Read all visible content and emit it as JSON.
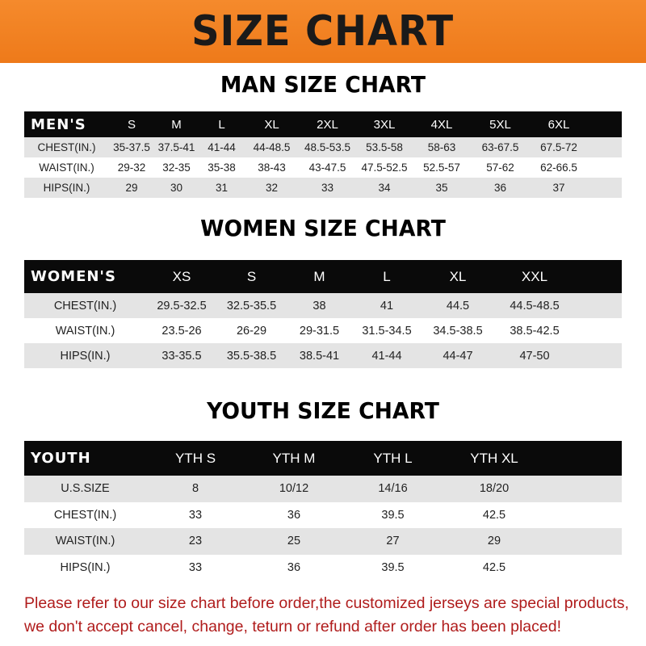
{
  "banner": {
    "title": "SIZE CHART",
    "color": "#f0801f"
  },
  "men": {
    "title": "MAN SIZE CHART",
    "header": [
      "MEN'S",
      "S",
      "M",
      "L",
      "XL",
      "2XL",
      "3XL",
      "4XL",
      "5XL",
      "6XL"
    ],
    "rows": [
      [
        "CHEST(IN.)",
        "35-37.5",
        "37.5-41",
        "41-44",
        "44-48.5",
        "48.5-53.5",
        "53.5-58",
        "58-63",
        "63-67.5",
        "67.5-72"
      ],
      [
        "WAIST(IN.)",
        "29-32",
        "32-35",
        "35-38",
        "38-43",
        "43-47.5",
        "47.5-52.5",
        "52.5-57",
        "57-62",
        "62-66.5"
      ],
      [
        "HIPS(IN.)",
        "29",
        "30",
        "31",
        "32",
        "33",
        "34",
        "35",
        "36",
        "37"
      ]
    ]
  },
  "women": {
    "title": "WOMEN SIZE CHART",
    "header": [
      "WOMEN'S",
      "XS",
      "S",
      "M",
      "L",
      "XL",
      "XXL"
    ],
    "rows": [
      [
        "CHEST(IN.)",
        "29.5-32.5",
        "32.5-35.5",
        "38",
        "41",
        "44.5",
        "44.5-48.5"
      ],
      [
        "WAIST(IN.)",
        "23.5-26",
        "26-29",
        "29-31.5",
        "31.5-34.5",
        "34.5-38.5",
        "38.5-42.5"
      ],
      [
        "HIPS(IN.)",
        "33-35.5",
        "35.5-38.5",
        "38.5-41",
        "41-44",
        "44-47",
        "47-50"
      ]
    ]
  },
  "youth": {
    "title": "YOUTH SIZE CHART",
    "header": [
      "YOUTH",
      "YTH S",
      "YTH M",
      "YTH L",
      "YTH XL"
    ],
    "rows": [
      [
        "U.S.SIZE",
        "8",
        "10/12",
        "14/16",
        "18/20"
      ],
      [
        "CHEST(IN.)",
        "33",
        "36",
        "39.5",
        "42.5"
      ],
      [
        "WAIST(IN.)",
        "23",
        "25",
        "27",
        "29"
      ],
      [
        "HIPS(IN.)",
        "33",
        "36",
        "39.5",
        "42.5"
      ]
    ]
  },
  "note": {
    "line1": "Please refer to our size chart before order,the customized jerseys are special products,",
    "line2": "we don't accept cancel, change, teturn or refund after order has been placed!",
    "color": "#b01c1c"
  }
}
